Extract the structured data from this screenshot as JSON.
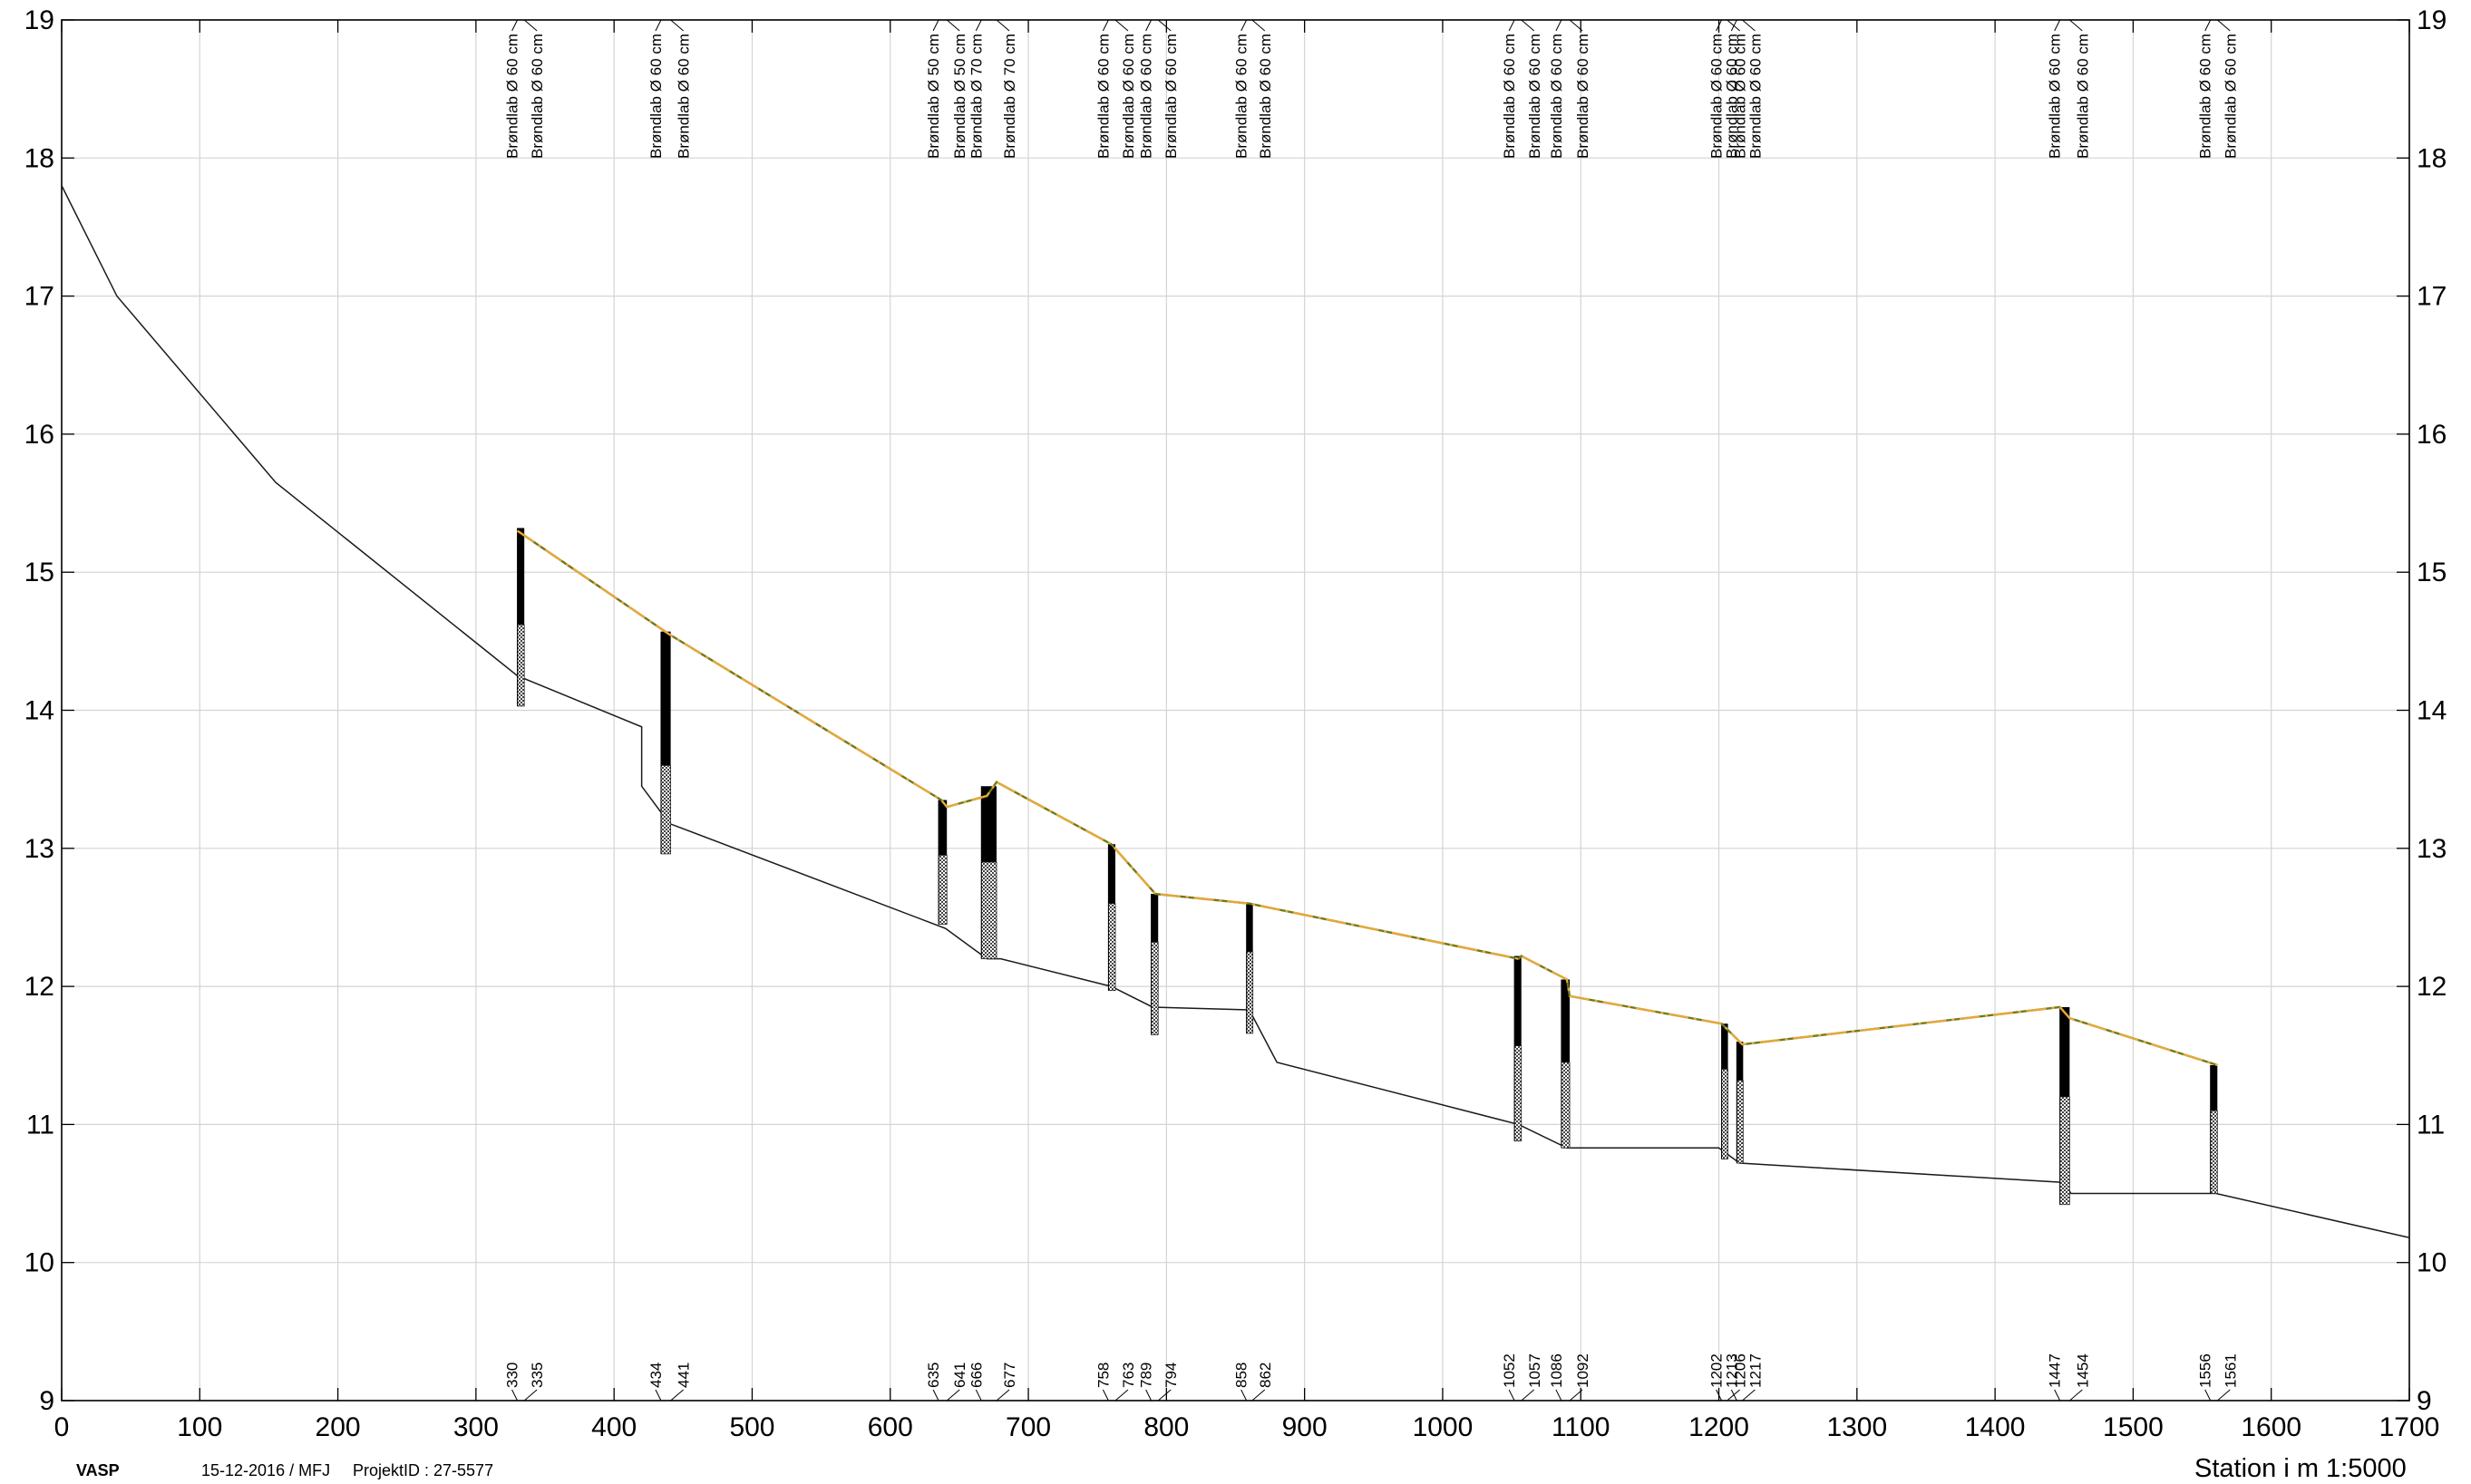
{
  "chart_data": {
    "type": "line",
    "title": "",
    "xlabel": "Station i m  1:5000",
    "ylabel": "",
    "xlim": [
      0,
      1700
    ],
    "ylim": [
      9,
      19
    ],
    "x_ticks": [
      0,
      100,
      200,
      300,
      400,
      500,
      600,
      700,
      800,
      900,
      1000,
      1100,
      1200,
      1300,
      1400,
      1500,
      1600,
      1700
    ],
    "y_ticks": [
      9,
      10,
      11,
      12,
      13,
      14,
      15,
      16,
      17,
      18,
      19
    ],
    "grid": true,
    "series": [
      {
        "points": [
          [
            0,
            17.8
          ],
          [
            40,
            17.0
          ],
          [
            155,
            15.65
          ],
          [
            330,
            14.25
          ],
          [
            420,
            13.88
          ],
          [
            420,
            13.45
          ],
          [
            440,
            13.18
          ],
          [
            640,
            12.42
          ],
          [
            670,
            12.2
          ],
          [
            680,
            12.2
          ],
          [
            760,
            12.0
          ],
          [
            790,
            11.85
          ],
          [
            860,
            11.83
          ],
          [
            880,
            11.45
          ],
          [
            1055,
            11.0
          ],
          [
            1090,
            10.83
          ],
          [
            1200,
            10.83
          ],
          [
            1215,
            10.72
          ],
          [
            1450,
            10.58
          ],
          [
            1455,
            10.5
          ],
          [
            1560,
            10.5
          ],
          [
            1700,
            10.18
          ]
        ]
      },
      {
        "points": [
          [
            330,
            15.3
          ],
          [
            440,
            14.55
          ],
          [
            637,
            13.35
          ],
          [
            641,
            13.3
          ],
          [
            670,
            13.38
          ],
          [
            677,
            13.48
          ],
          [
            760,
            13.03
          ],
          [
            792,
            12.67
          ],
          [
            860,
            12.6
          ],
          [
            1055,
            12.2
          ],
          [
            1057,
            12.22
          ],
          [
            1090,
            12.05
          ],
          [
            1092,
            11.93
          ],
          [
            1202,
            11.73
          ],
          [
            1217,
            11.58
          ],
          [
            1447,
            11.85
          ],
          [
            1454,
            11.77
          ],
          [
            1561,
            11.43
          ]
        ]
      }
    ],
    "structures": [
      {
        "station_a": 330,
        "station_b": 335,
        "label_a": "Brøndlab Ø 60 cm",
        "label_b": "Brøndlab Ø 60 cm",
        "top": 15.32,
        "mid": 14.62,
        "bottom": 14.03
      },
      {
        "station_a": 434,
        "station_b": 441,
        "label_a": "Brøndlab Ø 60 cm",
        "label_b": "Brøndlab Ø 60 cm",
        "top": 14.57,
        "mid": 13.6,
        "bottom": 12.96
      },
      {
        "station_a": 635,
        "station_b": 641,
        "label_a": "Brøndlab Ø 50 cm",
        "label_b": "Brøndlab Ø 50 cm",
        "top": 13.35,
        "mid": 12.95,
        "bottom": 12.45
      },
      {
        "station_a": 666,
        "station_b": 677,
        "label_a": "Brøndlab Ø 70 cm",
        "label_b": "Brøndlab Ø 70 cm",
        "top": 13.45,
        "mid": 12.9,
        "bottom": 12.2
      },
      {
        "station_a": 758,
        "station_b": 763,
        "label_a": "Brøndlab Ø 60 cm",
        "label_b": "Brøndlab Ø 60 cm",
        "top": 13.03,
        "mid": 12.6,
        "bottom": 11.97
      },
      {
        "station_a": 789,
        "station_b": 794,
        "label_a": "Brøndlab Ø 60 cm",
        "label_b": "Brøndlab Ø 60 cm",
        "top": 12.67,
        "mid": 12.32,
        "bottom": 11.65
      },
      {
        "station_a": 858,
        "station_b": 862,
        "label_a": "Brøndlab Ø 60 cm",
        "label_b": "Brøndlab Ø 60 cm",
        "top": 12.6,
        "mid": 12.25,
        "bottom": 11.66
      },
      {
        "station_a": 1052,
        "station_b": 1057,
        "label_a": "Brøndlab Ø 60 cm",
        "label_b": "Brøndlab Ø 60 cm",
        "top": 12.22,
        "mid": 11.57,
        "bottom": 10.88
      },
      {
        "station_a": 1086,
        "station_b": 1092,
        "label_a": "Brøndlab Ø 60 cm",
        "label_b": "Brøndlab Ø 60 cm",
        "top": 12.05,
        "mid": 11.45,
        "bottom": 10.83
      },
      {
        "station_a": 1202,
        "station_b": 1206,
        "label_a": "Brøndlab Ø 60 cm",
        "label_b": "Brøndlab Ø 60 cm",
        "top": 11.73,
        "mid": 11.4,
        "bottom": 10.75
      },
      {
        "station_a": 1213,
        "station_b": 1217,
        "label_a": "Brøndlab Ø 60 cm",
        "label_b": "Brøndlab Ø 60 cm",
        "top": 11.6,
        "mid": 11.32,
        "bottom": 10.72
      },
      {
        "station_a": 1447,
        "station_b": 1454,
        "label_a": "Brøndlab Ø 60 cm",
        "label_b": "Brøndlab Ø 60 cm",
        "top": 11.85,
        "mid": 11.2,
        "bottom": 10.42
      },
      {
        "station_a": 1556,
        "station_b": 1561,
        "label_a": "Brøndlab Ø 60 cm",
        "label_b": "Brøndlab Ø 60 cm",
        "top": 11.43,
        "mid": 11.1,
        "bottom": 10.5
      }
    ],
    "colors": {
      "terrain": "#1a1a1a",
      "pipe": "#6e7a1c",
      "pipe_dash": "#e6a83a",
      "well_fill": "#000000",
      "well_hatch": "#555555"
    }
  },
  "footer": {
    "app": "VASP",
    "date": "15-12-2016 / MFJ",
    "project": "ProjektID : 27-5577",
    "station": "Station i m  1:5000"
  }
}
